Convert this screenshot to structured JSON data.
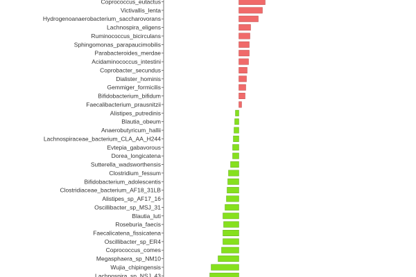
{
  "chart_data": {
    "type": "bar",
    "orientation": "horizontal",
    "title": "",
    "xlabel": "",
    "ylabel": "",
    "xlim": [
      -0.42,
      0.42
    ],
    "grid": false,
    "legend": "none",
    "colors": {
      "positive": "#f06a6a",
      "negative": "#86e01e"
    },
    "categories": [
      "Coprococcus_eutactus",
      "Victivallis_lenta",
      "Hydrogenoanaerobacterium_saccharovorans",
      "Lachnospira_eligens",
      "Ruminococcus_bicirculans",
      "Sphingomonas_parapaucimobilis",
      "Parabacteroides_merdae",
      "Acidaminococcus_intestini",
      "Coprobacter_secundus",
      "Dialister_hominis",
      "Gemmiger_formicilis",
      "Bifidobacterium_bifidum",
      "Faecalibacterium_prausnitzii",
      "Alistipes_putredinis",
      "Blautia_obeum",
      "Anaerobutyricum_hallii",
      "Lachnospiraceae_bacterium_CLA_AA_H244",
      "Evtepia_gabavorous",
      "Dorea_longicatena",
      "Sutterella_wadsworthensis",
      "Clostridium_fessum",
      "Bifidobacterium_adolescentis",
      "Clostridiaceae_bacterium_AF18_31LB",
      "Alistipes_sp_AF17_16",
      "Oscillibacter_sp_MSJ_31",
      "Blautia_luti",
      "Roseburia_faecis",
      "Faecalicatena_fissicatena",
      "Oscillibacter_sp_ER4",
      "Coprococcus_comes",
      "Megasphaera_sp_NM10",
      "Wujia_chipingensis",
      "Lachnospira_sp_NSJ_43"
    ],
    "values": [
      0.38,
      0.34,
      0.28,
      0.17,
      0.16,
      0.15,
      0.15,
      0.14,
      0.12,
      0.11,
      0.1,
      0.09,
      0.04,
      -0.05,
      -0.06,
      -0.07,
      -0.08,
      -0.09,
      -0.09,
      -0.12,
      -0.15,
      -0.16,
      -0.17,
      -0.18,
      -0.2,
      -0.23,
      -0.22,
      -0.23,
      -0.23,
      -0.25,
      -0.3,
      -0.4,
      -0.42
    ]
  }
}
